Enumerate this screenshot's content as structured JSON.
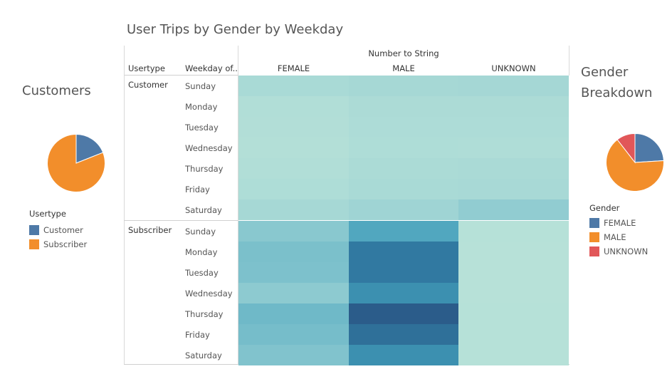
{
  "title": "User Trips by Gender by Weekday",
  "customers_pie": {
    "title": "Customers",
    "legend_title": "Usertype",
    "slices": [
      {
        "label": "Customer",
        "value": 0.19,
        "color": "#4e79a7"
      },
      {
        "label": "Subscriber",
        "value": 0.81,
        "color": "#f28e2b"
      }
    ]
  },
  "gender_pie": {
    "title_line1": "Gender",
    "title_line2": "Breakdown",
    "legend_title": "Gender",
    "slices": [
      {
        "label": "FEMALE",
        "value": 0.24,
        "color": "#4e79a7"
      },
      {
        "label": "MALE",
        "value": 0.655,
        "color": "#f28e2b"
      },
      {
        "label": "UNKNOWN",
        "value": 0.105,
        "color": "#e15759"
      }
    ]
  },
  "table": {
    "col_group_header": "Number to String",
    "row_header_1": "Usertype",
    "row_header_2": "Weekday of..",
    "columns": [
      "FEMALE",
      "MALE",
      "UNKNOWN"
    ]
  },
  "chart_data": {
    "type": "heatmap",
    "title": "User Trips by Gender by Weekday",
    "x_header": "Number to String",
    "x": [
      "FEMALE",
      "MALE",
      "UNKNOWN"
    ],
    "groups": [
      {
        "usertype": "Customer",
        "weekdays": [
          "Sunday",
          "Monday",
          "Tuesday",
          "Wednesday",
          "Thursday",
          "Friday",
          "Saturday"
        ],
        "values": [
          [
            0.19,
            0.22,
            0.23
          ],
          [
            0.12,
            0.16,
            0.16
          ],
          [
            0.11,
            0.15,
            0.15
          ],
          [
            0.1,
            0.14,
            0.13
          ],
          [
            0.12,
            0.17,
            0.18
          ],
          [
            0.14,
            0.19,
            0.2
          ],
          [
            0.22,
            0.27,
            0.34
          ]
        ]
      },
      {
        "usertype": "Subscriber",
        "weekdays": [
          "Sunday",
          "Monday",
          "Tuesday",
          "Wednesday",
          "Thursday",
          "Friday",
          "Saturday"
        ],
        "values": [
          [
            0.38,
            0.62,
            0.07
          ],
          [
            0.45,
            0.85,
            0.06
          ],
          [
            0.44,
            0.85,
            0.06
          ],
          [
            0.36,
            0.74,
            0.06
          ],
          [
            0.5,
            1.0,
            0.07
          ],
          [
            0.47,
            0.9,
            0.07
          ],
          [
            0.42,
            0.74,
            0.07
          ]
        ]
      }
    ],
    "color_low": "#bde5d9",
    "color_high": "#2b5c8a"
  }
}
